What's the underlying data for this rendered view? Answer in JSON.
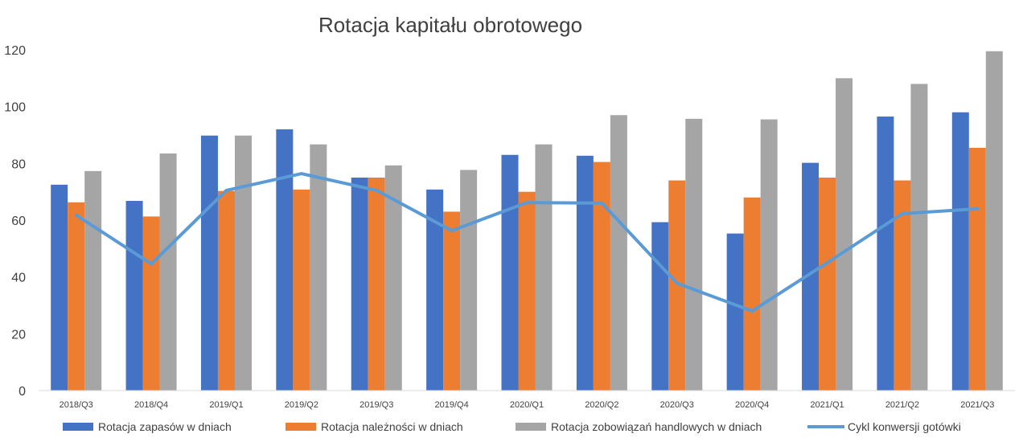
{
  "chart_data": {
    "type": "bar",
    "title": "Rotacja kapitału obrotowego",
    "xlabel": "",
    "ylabel": "",
    "ylim": [
      0,
      120
    ],
    "yticks": [
      0,
      20,
      40,
      60,
      80,
      100,
      120
    ],
    "grid": false,
    "legend_position": "bottom",
    "categories": [
      "2018/Q3",
      "2018/Q4",
      "2019/Q1",
      "2019/Q2",
      "2019/Q3",
      "2019/Q4",
      "2020/Q1",
      "2020/Q2",
      "2020/Q3",
      "2020/Q4",
      "2021/Q1",
      "2021/Q2",
      "2021/Q3"
    ],
    "series": [
      {
        "name": "Rotacja zapasów w dniach",
        "type": "bar",
        "color": "#4472C4",
        "values": [
          72.5,
          66.8,
          89.8,
          92.0,
          75.0,
          70.8,
          83.0,
          82.7,
          59.3,
          55.3,
          80.2,
          96.5,
          98.0
        ]
      },
      {
        "name": "Rotacja należności w dniach",
        "type": "bar",
        "color": "#ED7D31",
        "values": [
          66.3,
          61.3,
          70.3,
          70.8,
          75.0,
          63.0,
          70.0,
          80.5,
          74.0,
          68.0,
          75.0,
          74.0,
          85.5
        ]
      },
      {
        "name": "Rotacja zobowiązań handlowych w dniach",
        "type": "bar",
        "color": "#A5A5A5",
        "values": [
          77.3,
          83.5,
          89.8,
          86.7,
          79.3,
          77.7,
          86.7,
          97.0,
          95.7,
          95.5,
          110.0,
          108.0,
          119.5
        ]
      },
      {
        "name": "Cykl konwersji gotówki",
        "type": "line",
        "color": "#5B9BD5",
        "values": [
          61.8,
          44.6,
          70.5,
          76.4,
          70.5,
          56.3,
          66.2,
          66.0,
          37.8,
          28.0,
          45.0,
          62.3,
          64.0
        ]
      }
    ]
  }
}
